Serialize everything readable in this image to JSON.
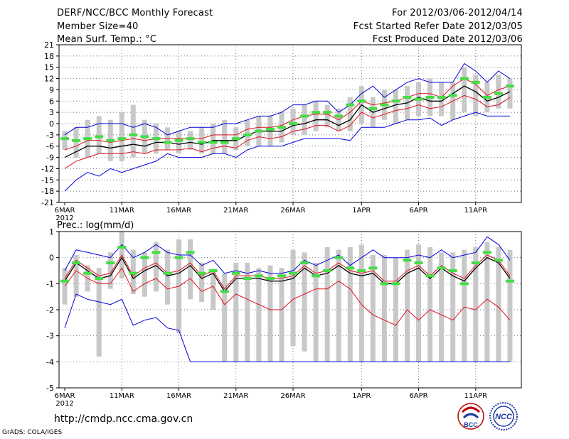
{
  "header": {
    "title": "DERF/NCC/BCC Monthly Forecast",
    "member_size": "Member Size=40",
    "variable": "Mean Surf. Temp.: °C",
    "period": "For 2012/03/06-2012/04/14",
    "started": "Fcst Started Refer Date 2012/03/05",
    "produced": "Fcst Produced Date 2012/03/06"
  },
  "footer": {
    "url": "http://cmdp.ncc.cma.gov.cn",
    "credit": "GrADS: COLA/IGES",
    "logo_bcc": "BCC",
    "logo_ncc": "NCC"
  },
  "colors": {
    "mean": "#000000",
    "spread": "#e0101a",
    "extreme": "#0000dd",
    "box": "#c8c8c8",
    "obs": "#44dd44"
  },
  "chart_data": [
    {
      "type": "box",
      "title": "Mean Surf. Temp.: °C",
      "xlabel": "",
      "ylabel": "",
      "ylim": [
        -21,
        21
      ],
      "yticks": [
        -21,
        -18,
        -15,
        -12,
        -9,
        -6,
        -3,
        0,
        3,
        6,
        9,
        12,
        15,
        18,
        21
      ],
      "xticks": [
        {
          "day": 1,
          "label": "6MAR",
          "sub": "2012"
        },
        {
          "day": 6,
          "label": "11MAR"
        },
        {
          "day": 11,
          "label": "16MAR"
        },
        {
          "day": 16,
          "label": "21MAR"
        },
        {
          "day": 21,
          "label": "26MAR"
        },
        {
          "day": 27,
          "label": "1APR"
        },
        {
          "day": 32,
          "label": "6APR"
        },
        {
          "day": 37,
          "label": "11APR"
        }
      ],
      "days": [
        1,
        2,
        3,
        4,
        5,
        6,
        7,
        8,
        9,
        10,
        11,
        12,
        13,
        14,
        15,
        16,
        17,
        18,
        19,
        20,
        21,
        22,
        23,
        24,
        25,
        26,
        27,
        28,
        29,
        30,
        31,
        32,
        33,
        34,
        35,
        36,
        37,
        38,
        39,
        40
      ],
      "box_low": [
        -7,
        -9,
        -9,
        -8,
        -10,
        -10,
        -9,
        -8,
        -8,
        -7,
        -8,
        -7,
        -8,
        -8,
        -8,
        -7,
        -6,
        -6,
        -6,
        -5,
        -3,
        -3,
        -2,
        -1,
        -2,
        -2,
        0,
        -1,
        1,
        0,
        1,
        2,
        2,
        2,
        1,
        3,
        2,
        3,
        4,
        4
      ],
      "box_high": [
        -2,
        -1,
        1,
        2,
        1,
        3,
        5,
        1,
        0,
        -1,
        -2,
        -2,
        -1,
        0,
        1,
        -1,
        1,
        2,
        2,
        3,
        4,
        5,
        6,
        5,
        4,
        7,
        10,
        7,
        9,
        9,
        10,
        11,
        12,
        11,
        11,
        15,
        13,
        11,
        13,
        12
      ],
      "series": [
        {
          "name": "ensemble mean",
          "values": [
            -9,
            -7.5,
            -6,
            -6,
            -6.5,
            -6,
            -5.5,
            -6,
            -5,
            -5,
            -5.5,
            -5,
            -5.5,
            -4.5,
            -4.5,
            -4.5,
            -3,
            -2,
            -2,
            -2,
            -0.5,
            0,
            1,
            1,
            -0.5,
            1,
            5,
            3,
            4,
            5,
            5.5,
            7,
            6,
            6,
            8,
            10,
            8.5,
            6,
            7,
            8.5
          ]
        },
        {
          "name": "upper spread",
          "values": [
            -7,
            -6,
            -4.5,
            -4.5,
            -5,
            -4.5,
            -4,
            -4.5,
            -4,
            -4,
            -4,
            -4,
            -4,
            -3,
            -3,
            -3,
            -1.5,
            -1,
            -1,
            -0.5,
            1,
            2,
            2.5,
            2.5,
            1,
            3,
            6,
            5,
            5.5,
            6,
            7,
            8,
            8,
            7,
            10,
            12,
            10.5,
            7.5,
            9,
            10
          ]
        },
        {
          "name": "lower spread",
          "values": [
            -12,
            -10,
            -9,
            -8,
            -8,
            -8,
            -7.5,
            -8,
            -7,
            -7,
            -7,
            -6.5,
            -7.5,
            -6.5,
            -6,
            -6.5,
            -4.5,
            -3.5,
            -4,
            -3.5,
            -2,
            -1.5,
            -0.5,
            -0.5,
            -2,
            -0.5,
            3,
            1.5,
            2.5,
            3.5,
            4,
            5,
            4,
            4.5,
            6,
            7.5,
            6.5,
            4.5,
            5,
            7
          ]
        },
        {
          "name": "maximum",
          "values": [
            -3,
            -1,
            -1,
            0,
            0,
            0,
            -1,
            0,
            -1,
            -3,
            -2,
            -1,
            -1,
            -1,
            0,
            0,
            1,
            2,
            2,
            3,
            5,
            5,
            6,
            6,
            3,
            5,
            8,
            10,
            7,
            9,
            11,
            12,
            11,
            11,
            11,
            16,
            14,
            11,
            14,
            12
          ]
        },
        {
          "name": "minimum",
          "values": [
            -18,
            -15,
            -13,
            -14,
            -12,
            -13,
            -12,
            -11,
            -10,
            -8,
            -9,
            -9,
            -9,
            -8,
            -8,
            -9,
            -7,
            -6,
            -6,
            -6,
            -5,
            -4,
            -4,
            -4,
            -4,
            -4.5,
            -1,
            -1,
            -1,
            0,
            1,
            1,
            1.5,
            -0.5,
            1,
            2,
            3,
            2,
            2,
            2
          ]
        },
        {
          "name": "climatology",
          "values": [
            -4,
            -4.5,
            -4,
            -3.5,
            -4.5,
            -4,
            -3,
            -3.5,
            -4,
            -5,
            -4.5,
            -4,
            -5,
            -5,
            -5,
            -4,
            -3,
            -2,
            -1.5,
            -1,
            0,
            2,
            3,
            3,
            2,
            5,
            6,
            4,
            5,
            6,
            7,
            6.5,
            7,
            7,
            7.5,
            12,
            11,
            7,
            8,
            10
          ]
        }
      ]
    },
    {
      "type": "box",
      "title": "Prec.: log(mm/d)",
      "xlabel": "",
      "ylabel": "",
      "ylim": [
        -5,
        1
      ],
      "yticks": [
        -5,
        -4,
        -3,
        -2,
        -1,
        0,
        1
      ],
      "xticks": [
        {
          "day": 1,
          "label": "6MAR",
          "sub": "2012"
        },
        {
          "day": 6,
          "label": "11MAR"
        },
        {
          "day": 11,
          "label": "16MAR"
        },
        {
          "day": 16,
          "label": "21MAR"
        },
        {
          "day": 21,
          "label": "26MAR"
        },
        {
          "day": 27,
          "label": "1APR"
        },
        {
          "day": 32,
          "label": "6APR"
        },
        {
          "day": 37,
          "label": "11APR"
        }
      ],
      "days": [
        1,
        2,
        3,
        4,
        5,
        6,
        7,
        8,
        9,
        10,
        11,
        12,
        13,
        14,
        15,
        16,
        17,
        18,
        19,
        20,
        21,
        22,
        23,
        24,
        25,
        26,
        27,
        28,
        29,
        30,
        31,
        32,
        33,
        34,
        35,
        36,
        37,
        38,
        39,
        40
      ],
      "box_low": [
        -1.8,
        -1.5,
        -1.3,
        -3.8,
        -1.2,
        -0.8,
        -1.4,
        -1.5,
        -1.3,
        -1.8,
        -2.9,
        -1.6,
        -1.7,
        -2.0,
        -4.0,
        -4.0,
        -4.0,
        -4.0,
        -4.0,
        -4.0,
        -3.4,
        -3.6,
        -4.0,
        -4.0,
        -4.0,
        -4.0,
        -4.0,
        -4.0,
        -4.0,
        -4.0,
        -4.0,
        -4.0,
        -4.0,
        -4.0,
        -4.0,
        -4.0,
        -4.0,
        -4.0,
        -4.0,
        -4.0
      ],
      "box_high": [
        -0.4,
        0.1,
        -0.3,
        -0.4,
        0.2,
        1.0,
        0.3,
        0.2,
        0.6,
        0.3,
        0.7,
        0.7,
        -0.2,
        -0.5,
        -0.6,
        -0.2,
        -0.2,
        -0.4,
        -0.3,
        -0.4,
        0.3,
        0.2,
        -0.2,
        0.4,
        0.3,
        0.4,
        0.5,
        0.1,
        0.1,
        0.0,
        0.3,
        0.5,
        0.4,
        0.2,
        0.2,
        0.3,
        0.4,
        0.6,
        0.4,
        0.3
      ],
      "series": [
        {
          "name": "ensemble mean",
          "values": [
            -0.9,
            -0.2,
            -0.5,
            -0.8,
            -0.7,
            0.0,
            -0.8,
            -0.5,
            -0.3,
            -0.7,
            -0.6,
            -0.3,
            -0.8,
            -0.6,
            -1.3,
            -0.8,
            -0.8,
            -0.8,
            -0.9,
            -0.9,
            -0.8,
            -0.4,
            -0.7,
            -0.6,
            -0.3,
            -0.6,
            -0.7,
            -0.6,
            -1.0,
            -1.0,
            -0.6,
            -0.4,
            -0.8,
            -0.4,
            -0.7,
            -0.9,
            -0.4,
            0.0,
            -0.2,
            -0.8
          ]
        },
        {
          "name": "upper spread",
          "values": [
            -0.8,
            -0.1,
            -0.4,
            -0.7,
            -0.6,
            0.1,
            -0.7,
            -0.4,
            -0.2,
            -0.6,
            -0.5,
            -0.2,
            -0.7,
            -0.5,
            -1.2,
            -0.7,
            -0.7,
            -0.7,
            -0.8,
            -0.8,
            -0.7,
            -0.3,
            -0.6,
            -0.5,
            -0.2,
            -0.5,
            -0.6,
            -0.5,
            -0.9,
            -0.9,
            -0.5,
            -0.3,
            -0.7,
            -0.3,
            -0.6,
            -0.8,
            -0.3,
            0.1,
            -0.1,
            -0.7
          ]
        },
        {
          "name": "lower spread",
          "values": [
            -1.1,
            -0.5,
            -0.8,
            -1.0,
            -1.0,
            -0.4,
            -1.3,
            -1.0,
            -0.8,
            -1.2,
            -1.1,
            -0.8,
            -1.3,
            -1.1,
            -1.8,
            -1.4,
            -1.6,
            -1.8,
            -2.0,
            -2.0,
            -1.6,
            -1.4,
            -1.2,
            -1.2,
            -0.9,
            -1.2,
            -1.8,
            -2.2,
            -2.4,
            -2.6,
            -2.0,
            -2.4,
            -2.0,
            -2.2,
            -2.4,
            -1.9,
            -2.0,
            -1.6,
            -1.9,
            -2.4
          ]
        },
        {
          "name": "maximum",
          "values": [
            -0.5,
            0.3,
            0.2,
            0.1,
            0.0,
            0.5,
            0.0,
            0.2,
            0.5,
            0.2,
            0.1,
            0.1,
            -0.3,
            -0.1,
            -0.6,
            -0.5,
            -0.6,
            -0.5,
            -0.6,
            -0.6,
            -0.5,
            -0.1,
            -0.3,
            -0.1,
            0.1,
            -0.3,
            0.0,
            0.3,
            0.0,
            0.0,
            0.0,
            0.1,
            0.0,
            0.3,
            0.0,
            0.1,
            0.2,
            0.8,
            0.5,
            -0.1
          ]
        },
        {
          "name": "minimum",
          "values": [
            -2.7,
            -1.4,
            -1.6,
            -1.7,
            -1.8,
            -1.6,
            -2.6,
            -2.4,
            -2.3,
            -2.7,
            -2.8,
            -4.0,
            -4.0,
            -4.0,
            -4.0,
            -4.0,
            -4.0,
            -4.0,
            -4.0,
            -4.0,
            -4.0,
            -4.0,
            -4.0,
            -4.0,
            -4.0,
            -4.0,
            -4.0,
            -4.0,
            -4.0,
            -4.0,
            -4.0,
            -4.0,
            -4.0,
            -4.0,
            -4.0,
            -4.0,
            -4.0,
            -4.0,
            -4.0,
            -4.0
          ]
        },
        {
          "name": "climatology",
          "values": [
            -0.9,
            -0.2,
            -0.6,
            -0.8,
            -0.2,
            0.4,
            -0.6,
            0.0,
            0.2,
            -0.6,
            0.0,
            0.2,
            -0.6,
            -0.5,
            -1.3,
            -0.6,
            -0.8,
            -0.7,
            -0.8,
            -0.7,
            -0.6,
            -0.2,
            -0.7,
            -0.5,
            0.0,
            -0.4,
            -0.5,
            -0.4,
            -1.0,
            -1.0,
            -0.1,
            -0.2,
            -0.7,
            -0.4,
            -0.5,
            -1.0,
            -0.2,
            0.2,
            -0.1,
            -0.9
          ]
        }
      ]
    }
  ]
}
